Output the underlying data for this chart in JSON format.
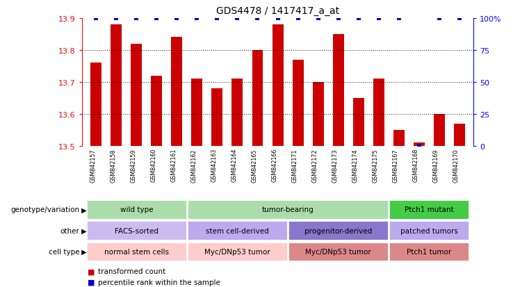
{
  "title": "GDS4478 / 1417417_a_at",
  "samples": [
    "GSM842157",
    "GSM842158",
    "GSM842159",
    "GSM842160",
    "GSM842161",
    "GSM842162",
    "GSM842163",
    "GSM842164",
    "GSM842165",
    "GSM842166",
    "GSM842171",
    "GSM842172",
    "GSM842173",
    "GSM842174",
    "GSM842175",
    "GSM842167",
    "GSM842168",
    "GSM842169",
    "GSM842170"
  ],
  "bar_values": [
    13.76,
    13.88,
    13.82,
    13.72,
    13.84,
    13.71,
    13.68,
    13.71,
    13.8,
    13.88,
    13.77,
    13.7,
    13.85,
    13.65,
    13.71,
    13.55,
    13.51,
    13.6,
    13.57
  ],
  "percentile_values": [
    100,
    100,
    100,
    100,
    100,
    100,
    100,
    100,
    100,
    100,
    100,
    100,
    100,
    100,
    100,
    100,
    0,
    100,
    100
  ],
  "ylim_left": [
    13.5,
    13.9
  ],
  "yticks_left": [
    13.5,
    13.6,
    13.7,
    13.8,
    13.9
  ],
  "yticks_right": [
    0,
    25,
    50,
    75,
    100
  ],
  "ytick_labels_right": [
    "0",
    "25",
    "50",
    "75",
    "100%"
  ],
  "bar_color": "#cc0000",
  "dot_color": "#0000cc",
  "grid_lines": [
    13.6,
    13.7,
    13.8
  ],
  "genotype_groups": [
    {
      "label": "wild type",
      "start": 0,
      "end": 5,
      "color": "#aaddaa"
    },
    {
      "label": "tumor-bearing",
      "start": 5,
      "end": 15,
      "color": "#aaddaa"
    },
    {
      "label": "Ptch1 mutant",
      "start": 15,
      "end": 19,
      "color": "#44cc44"
    }
  ],
  "other_groups": [
    {
      "label": "FACS-sorted",
      "start": 0,
      "end": 5,
      "color": "#ccbbee"
    },
    {
      "label": "stem cell-derived",
      "start": 5,
      "end": 10,
      "color": "#bbaaee"
    },
    {
      "label": "progenitor-derived",
      "start": 10,
      "end": 15,
      "color": "#8877cc"
    },
    {
      "label": "patched tumors",
      "start": 15,
      "end": 19,
      "color": "#bbaaee"
    }
  ],
  "celltype_groups": [
    {
      "label": "normal stem cells",
      "start": 0,
      "end": 5,
      "color": "#ffcccc"
    },
    {
      "label": "Myc/DNp53 tumor",
      "start": 5,
      "end": 10,
      "color": "#ffcccc"
    },
    {
      "label": "Myc/DNp53 tumor",
      "start": 10,
      "end": 15,
      "color": "#dd8888"
    },
    {
      "label": "Ptch1 tumor",
      "start": 15,
      "end": 19,
      "color": "#dd8888"
    }
  ],
  "row_labels": [
    "genotype/variation",
    "other",
    "cell type"
  ],
  "legend_items": [
    {
      "color": "#cc0000",
      "label": "transformed count"
    },
    {
      "color": "#0000cc",
      "label": "percentile rank within the sample"
    }
  ]
}
